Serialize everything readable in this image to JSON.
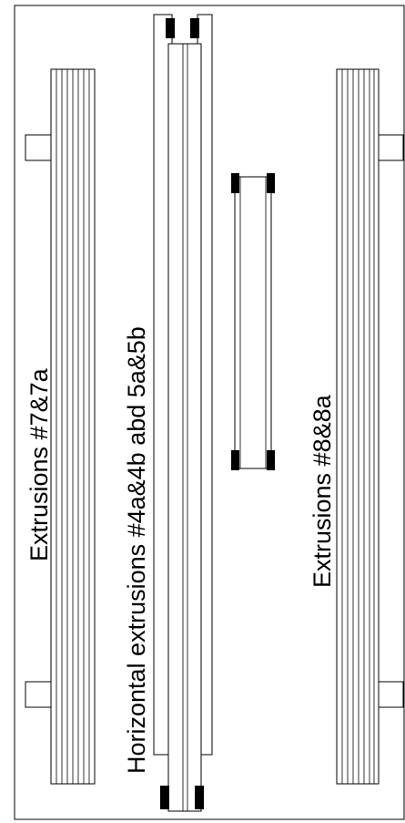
{
  "labels": {
    "left_group": "Extrusions #7&7a",
    "center_group": "Horizontal extrusions #4a&4b abd 5a&5b",
    "right_group": "Extrusions #8&8a"
  },
  "colors": {
    "line": "#000000",
    "background": "#ffffff"
  }
}
